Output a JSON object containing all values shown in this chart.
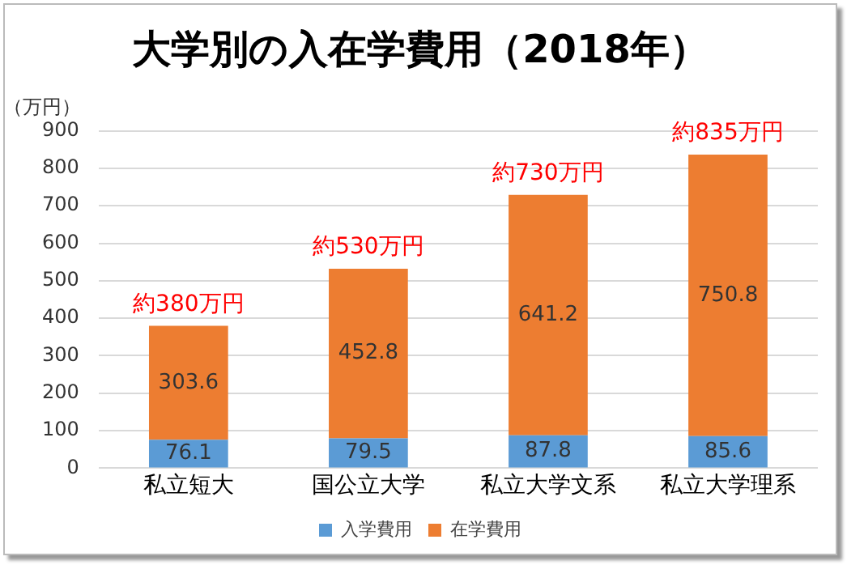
{
  "chart_data": {
    "type": "bar",
    "title": "大学別の入在学費用（2018年）",
    "ylabel": "（万円）",
    "categories": [
      "私立短大",
      "国公立大学",
      "私立大学文系",
      "私立大学理系"
    ],
    "series": [
      {
        "name": "入学費用",
        "color": "#5b9bd5",
        "values": [
          76.1,
          79.5,
          87.8,
          85.6
        ]
      },
      {
        "name": "在学費用",
        "color": "#ed7d31",
        "values": [
          303.6,
          452.8,
          641.2,
          750.8
        ]
      }
    ],
    "stacked": true,
    "ylim": [
      0,
      900
    ],
    "yticks": [
      0,
      100,
      200,
      300,
      400,
      500,
      600,
      700,
      800,
      900
    ],
    "grid": "y",
    "legend": "bottom",
    "data_labels": true,
    "totals": [
      "約380万円",
      "約530万円",
      "約730万円",
      "約835万円"
    ]
  }
}
